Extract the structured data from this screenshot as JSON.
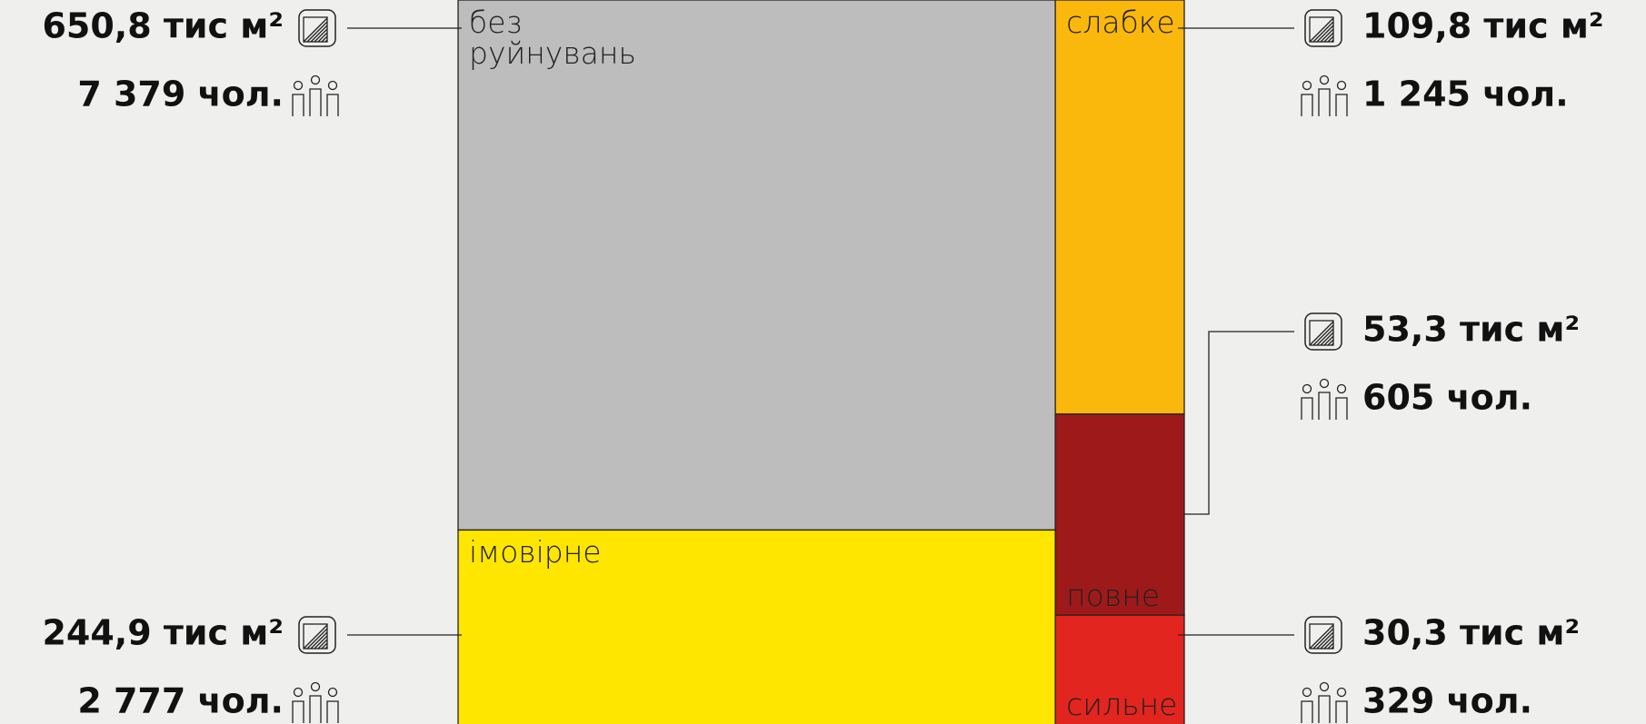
{
  "chart_data": {
    "type": "treemap",
    "categories": [
      "без руйнувань",
      "імовірне",
      "слабке",
      "повне",
      "сильне"
    ],
    "values": [
      650.8,
      244.9,
      109.8,
      53.3,
      30.3
    ],
    "value_labels": [
      "650,8 тис м²",
      "244,9 тис м²",
      "109,8 тис м²",
      "53,3 тис м²",
      "30,3 тис м²"
    ],
    "people": [
      7379,
      2777,
      1245,
      605,
      329
    ],
    "people_labels": [
      "7 379 чол.",
      "2 777 чол.",
      "1 245 чол.",
      "605 чол.",
      "329 чол."
    ],
    "colors": [
      "#bdbdbd",
      "#ffe600",
      "#fbb80c",
      "#9e1a1a",
      "#e3251f"
    ]
  }
}
